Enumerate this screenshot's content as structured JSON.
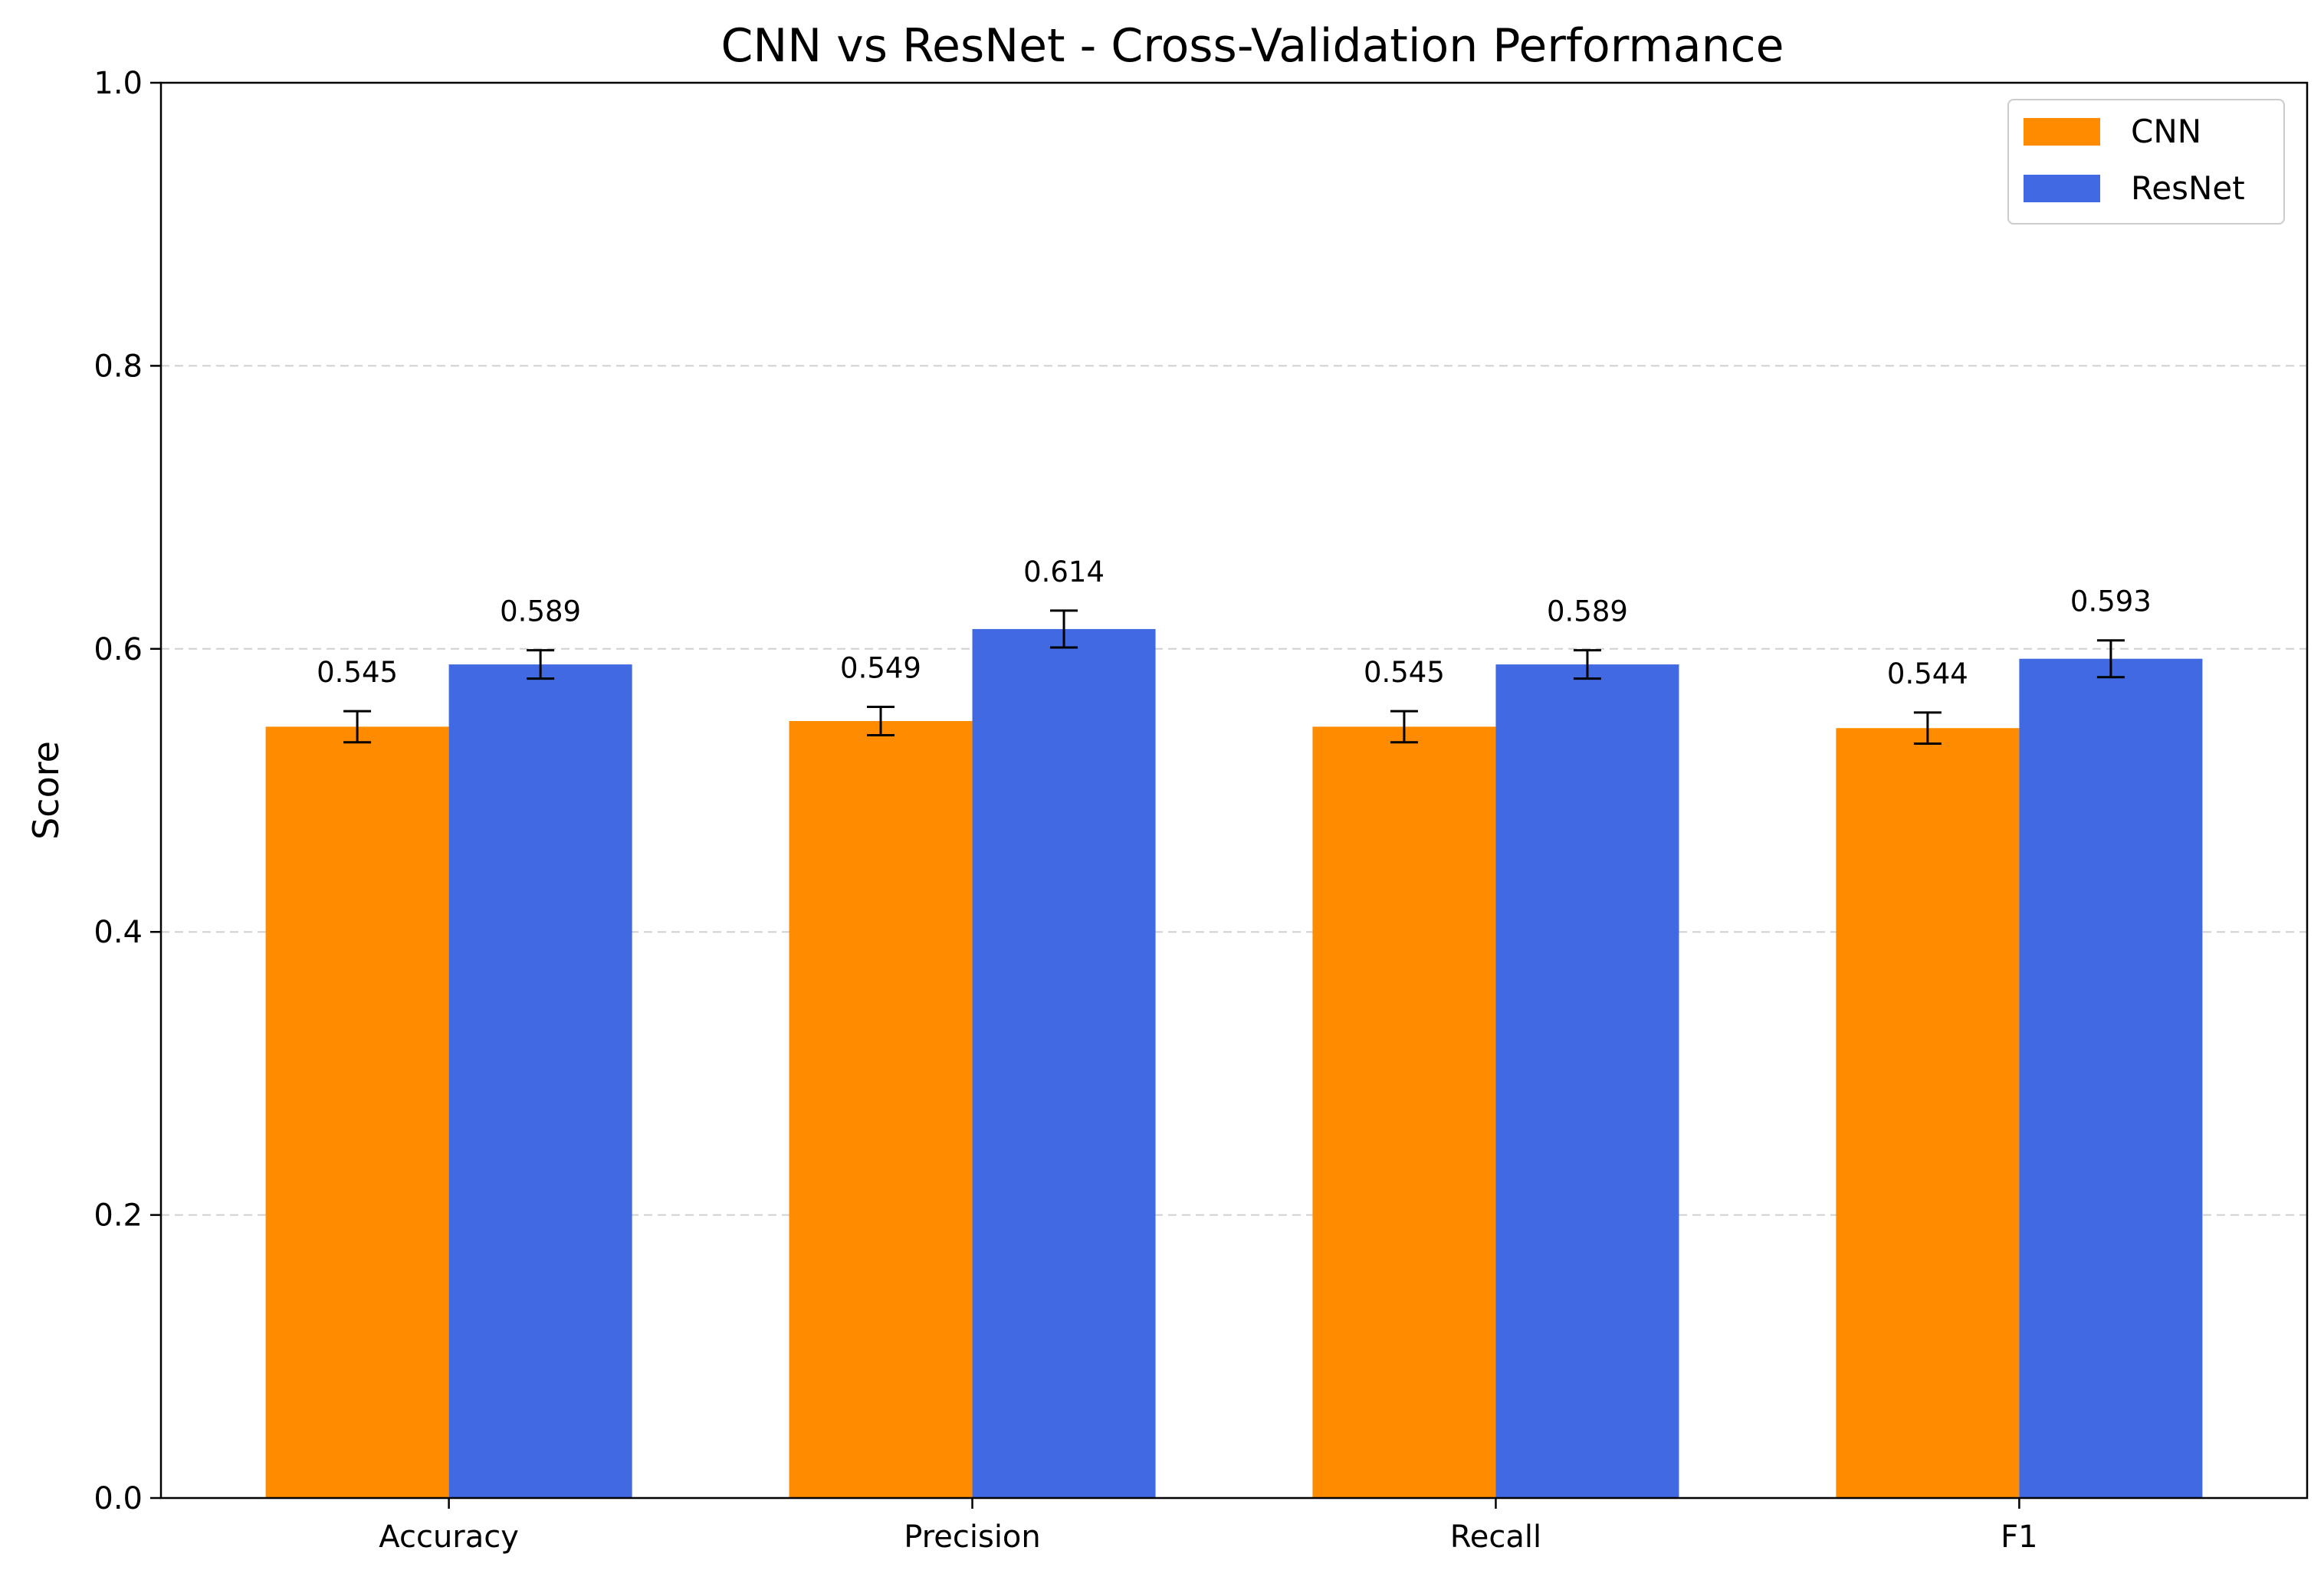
{
  "chart_data": {
    "type": "bar",
    "title": "CNN vs ResNet - Cross-Validation Performance",
    "xlabel": "",
    "ylabel": "Score",
    "ylim": [
      0,
      1.0
    ],
    "yticks": [
      "0.0",
      "0.2",
      "0.4",
      "0.6",
      "0.8",
      "1.0"
    ],
    "grid": "y-dashed",
    "legend_position": "top-right",
    "categories": [
      "Accuracy",
      "Precision",
      "Recall",
      "F1"
    ],
    "series": [
      {
        "name": "CNN",
        "color": "#ff8c00",
        "values": [
          0.545,
          0.549,
          0.545,
          0.544
        ],
        "labels": [
          "0.545",
          "0.549",
          "0.545",
          "0.544"
        ],
        "errors": [
          0.011,
          0.01,
          0.011,
          0.011
        ]
      },
      {
        "name": "ResNet",
        "color": "#4169e1",
        "values": [
          0.589,
          0.614,
          0.589,
          0.593
        ],
        "labels": [
          "0.589",
          "0.614",
          "0.589",
          "0.593"
        ],
        "errors": [
          0.01,
          0.013,
          0.01,
          0.013
        ]
      }
    ]
  }
}
